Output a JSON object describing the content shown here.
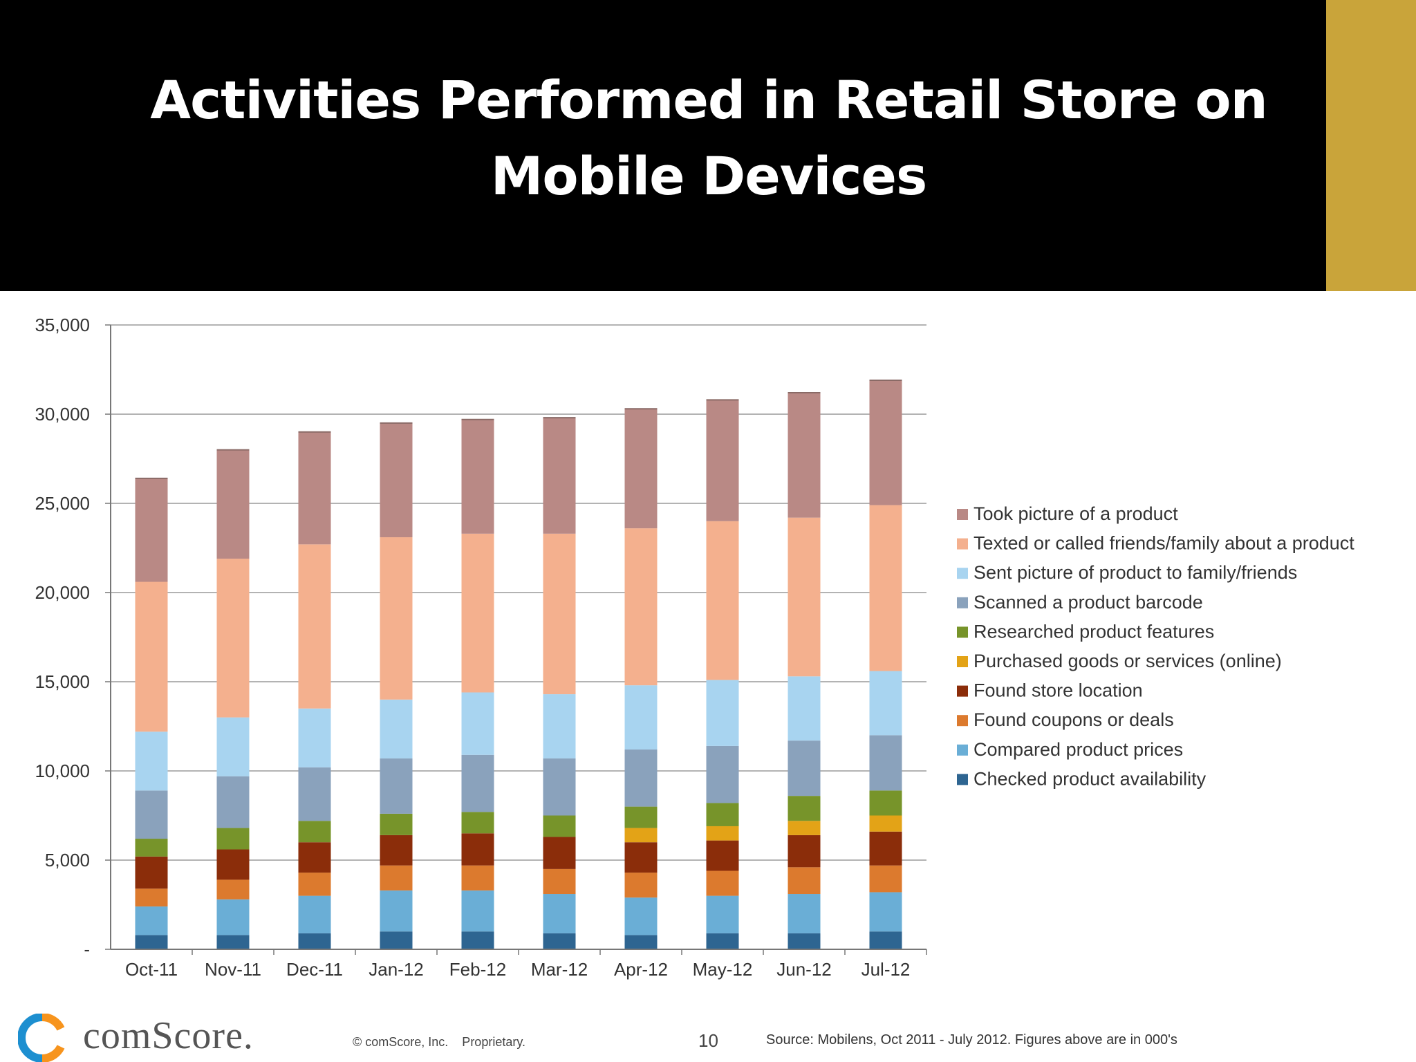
{
  "slide": {
    "title": "Activities Performed in Retail Store on Mobile Devices",
    "page_number": "10",
    "brand": "comScore.",
    "copyright": "© comScore, Inc.    Proprietary.",
    "source": "Source: Mobilens, Oct 2011 - July 2012. Figures above are in 000's"
  },
  "colors": {
    "header_bg": "#000000",
    "accent_gold": "#c9a43a"
  },
  "chart_data": {
    "type": "bar",
    "stacked": true,
    "categories": [
      "Oct-11",
      "Nov-11",
      "Dec-11",
      "Jan-12",
      "Feb-12",
      "Mar-12",
      "Apr-12",
      "May-12",
      "Jun-12",
      "Jul-12"
    ],
    "ylim": [
      0,
      35000
    ],
    "yticks": [
      0,
      5000,
      10000,
      15000,
      20000,
      25000,
      30000,
      35000
    ],
    "ytick_labels": [
      "-",
      "5,000",
      "10,000",
      "15,000",
      "20,000",
      "25,000",
      "30,000",
      "35,000"
    ],
    "grid": true,
    "legend_position": "right",
    "series": [
      {
        "name": "Checked product availability",
        "color": "#2e6591",
        "values": [
          800,
          800,
          900,
          1000,
          1000,
          900,
          800,
          900,
          900,
          1000
        ]
      },
      {
        "name": "Compared product prices",
        "color": "#6aaed6",
        "values": [
          1600,
          2000,
          2100,
          2300,
          2300,
          2200,
          2100,
          2100,
          2200,
          2200
        ]
      },
      {
        "name": "Found coupons or deals",
        "color": "#dc7a2e",
        "values": [
          1000,
          1100,
          1300,
          1400,
          1400,
          1400,
          1400,
          1400,
          1500,
          1500
        ]
      },
      {
        "name": "Found store location",
        "color": "#8b2d0a",
        "values": [
          1800,
          1700,
          1700,
          1700,
          1800,
          1800,
          1700,
          1700,
          1800,
          1900
        ]
      },
      {
        "name": "Purchased goods or services (online)",
        "color": "#e3a317",
        "values": [
          0,
          0,
          0,
          0,
          0,
          0,
          800,
          800,
          800,
          900
        ]
      },
      {
        "name": "Researched product features",
        "color": "#77942a",
        "values": [
          1000,
          1200,
          1200,
          1200,
          1200,
          1200,
          1200,
          1300,
          1400,
          1400
        ]
      },
      {
        "name": "Scanned a product barcode",
        "color": "#8aa2bc",
        "values": [
          2700,
          2900,
          3000,
          3100,
          3200,
          3200,
          3200,
          3200,
          3100,
          3100
        ]
      },
      {
        "name": "Sent picture of product to family/friends",
        "color": "#a8d4f0",
        "values": [
          3300,
          3300,
          3300,
          3300,
          3500,
          3600,
          3600,
          3700,
          3600,
          3600
        ]
      },
      {
        "name": "Texted or called friends/family about a product",
        "color": "#f4b08e",
        "values": [
          8400,
          8900,
          9200,
          9100,
          8900,
          9000,
          8800,
          8900,
          8900,
          9300
        ]
      },
      {
        "name": "Took picture of a product",
        "color": "#b98985",
        "values": [
          5800,
          6100,
          6300,
          6400,
          6400,
          6500,
          6700,
          6800,
          7000,
          7000
        ]
      }
    ],
    "legend_order": [
      "Took picture of a product",
      "Texted or called friends/family about a product",
      "Sent picture of product to family/friends",
      "Scanned a product barcode",
      "Researched product features",
      "Purchased goods or services (online)",
      "Found store location",
      "Found coupons or deals",
      "Compared product prices",
      "Checked product availability"
    ]
  }
}
